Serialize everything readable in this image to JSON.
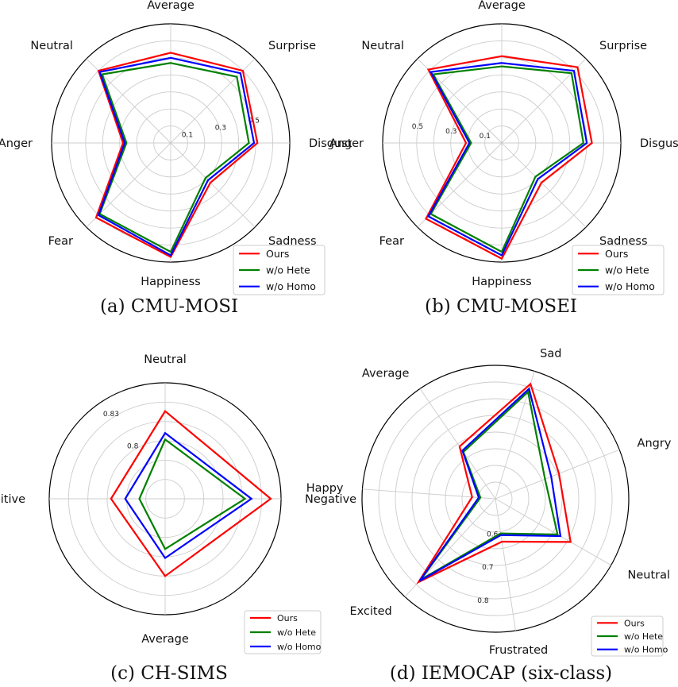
{
  "colors": {
    "Ours": "#ff0000",
    "w/o Hete": "#008000",
    "w/o Homo": "#0000ff",
    "grid": "#cccccc",
    "frame": "#000000"
  },
  "chart_data": [
    {
      "type": "radar",
      "caption": "(a) CMU-MOSI",
      "axes": [
        "Average",
        "Surprise",
        "Disgust",
        "Sadness",
        "Happiness",
        "Fear",
        "Anger",
        "Neutral"
      ],
      "rlim": [
        0,
        0.7
      ],
      "rings": [
        0.1,
        0.2,
        0.3,
        0.4,
        0.5,
        0.6,
        0.7
      ],
      "tick_labels": [
        "0.1",
        "0.3",
        "0.5"
      ],
      "legend_position": "lower-right",
      "series": [
        {
          "name": "Ours",
          "values": [
            0.53,
            0.6,
            0.51,
            0.33,
            0.67,
            0.62,
            0.28,
            0.6
          ]
        },
        {
          "name": "w/o Hete",
          "values": [
            0.47,
            0.55,
            0.46,
            0.29,
            0.64,
            0.59,
            0.26,
            0.57
          ]
        },
        {
          "name": "w/o Homo",
          "values": [
            0.5,
            0.58,
            0.49,
            0.31,
            0.66,
            0.6,
            0.27,
            0.59
          ]
        }
      ]
    },
    {
      "type": "radar",
      "caption": "(b) CMU-MOSEI",
      "axes": [
        "Average",
        "Surprise",
        "Disgust",
        "Sadness",
        "Happiness",
        "Fear",
        "Anger",
        "Neutral"
      ],
      "rlim": [
        0,
        0.7
      ],
      "rings": [
        0.1,
        0.2,
        0.3,
        0.4,
        0.5,
        0.6,
        0.7
      ],
      "tick_labels": [
        "0.1",
        "0.3",
        "0.5"
      ],
      "legend_position": "lower-right",
      "series": [
        {
          "name": "Ours",
          "values": [
            0.51,
            0.63,
            0.53,
            0.33,
            0.68,
            0.63,
            0.21,
            0.61
          ]
        },
        {
          "name": "w/o Hete",
          "values": [
            0.45,
            0.58,
            0.48,
            0.28,
            0.64,
            0.59,
            0.18,
            0.57
          ]
        },
        {
          "name": "w/o Homo",
          "values": [
            0.47,
            0.6,
            0.5,
            0.3,
            0.66,
            0.61,
            0.19,
            0.59
          ]
        }
      ]
    },
    {
      "type": "radar",
      "caption": "(c) CH-SIMS",
      "axes": [
        "Neutral",
        "Negative",
        "Average",
        "Positive"
      ],
      "rlim": [
        0.755,
        0.845
      ],
      "rings": [
        0.77,
        0.785,
        0.8,
        0.815,
        0.83,
        0.845
      ],
      "tick_labels": [
        "0.8",
        "0.83"
      ],
      "legend_position": "lower-right",
      "series": [
        {
          "name": "Ours",
          "values": [
            0.823,
            0.837,
            0.815,
            0.797
          ]
        },
        {
          "name": "w/o Hete",
          "values": [
            0.801,
            0.817,
            0.794,
            0.775
          ]
        },
        {
          "name": "w/o Homo",
          "values": [
            0.806,
            0.822,
            0.801,
            0.786
          ]
        }
      ]
    },
    {
      "type": "radar",
      "caption": "(d) IEMOCAP (six-class)",
      "axes": [
        "Sad",
        "Angry",
        "Neutral",
        "Frustrated",
        "Excited",
        "Happy",
        "Average"
      ],
      "rlim": [
        0.5,
        0.9
      ],
      "rings": [
        0.55,
        0.6,
        0.65,
        0.7,
        0.75,
        0.8,
        0.85,
        0.9
      ],
      "tick_labels": [
        "0.6",
        "0.7",
        "0.8"
      ],
      "legend_position": "lower-right",
      "series": [
        {
          "name": "Ours",
          "values": [
            0.86,
            0.705,
            0.76,
            0.63,
            0.84,
            0.57,
            0.69
          ]
        },
        {
          "name": "w/o Hete",
          "values": [
            0.835,
            0.66,
            0.715,
            0.605,
            0.83,
            0.545,
            0.67
          ]
        },
        {
          "name": "w/o Homo",
          "values": [
            0.845,
            0.68,
            0.725,
            0.61,
            0.835,
            0.55,
            0.675
          ]
        }
      ]
    }
  ]
}
